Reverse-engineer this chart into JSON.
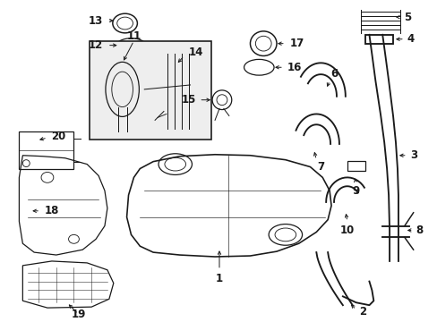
{
  "bg_color": "#ffffff",
  "line_color": "#1a1a1a",
  "lw": 0.9,
  "fs": 8.5
}
